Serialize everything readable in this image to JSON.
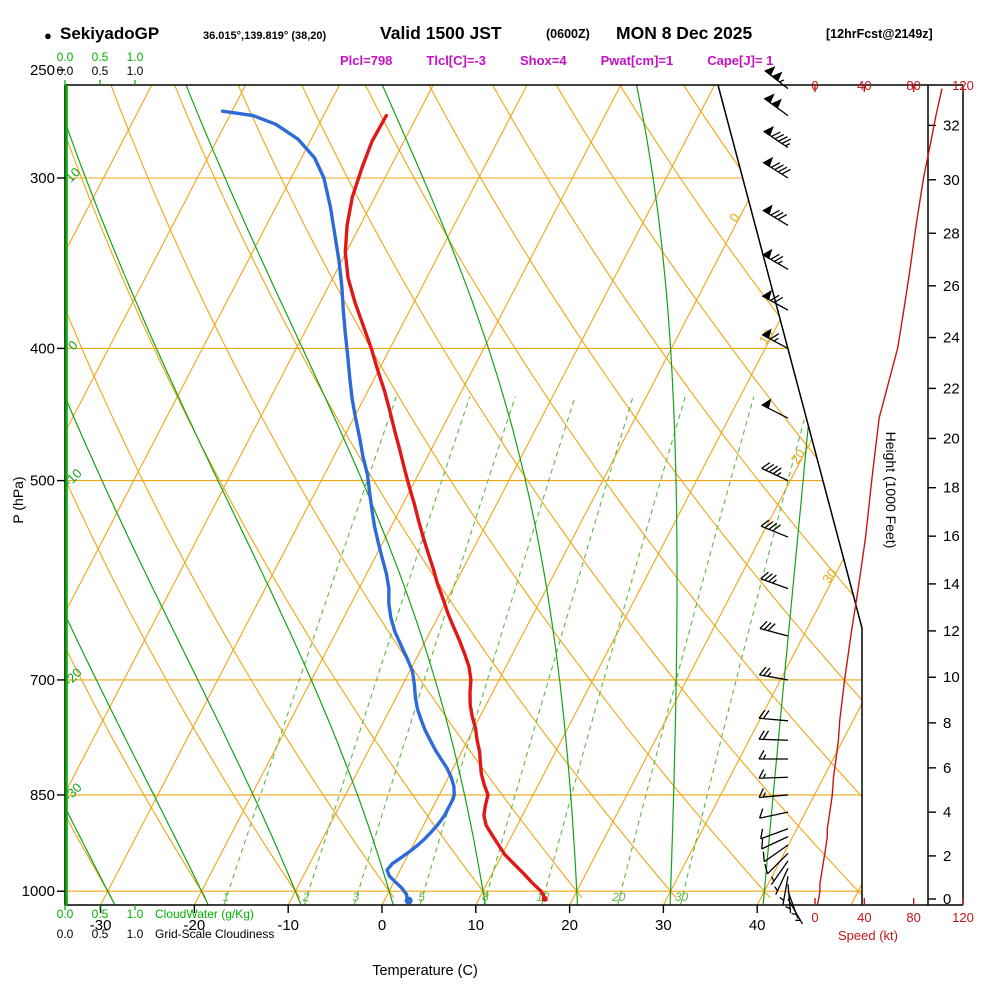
{
  "header": {
    "bullet": "●",
    "station": "SekiyadoGP",
    "coords": "36.015°,139.819° (38,20)",
    "valid": "Valid 1500 JST",
    "valid_utc": "(0600Z)",
    "date": "MON 8 Dec 2025",
    "forecast": "[12hrFcst@2149z]"
  },
  "params": [
    "Plcl=798",
    "Tlcl[C]=-3",
    "Shox=4",
    "Pwat[cm]=1",
    "Cape[J]= 1"
  ],
  "axis_labels": {
    "pressure": "P (hPa)",
    "temperature": "Temperature (C)",
    "height": "Height (1000 Feet)",
    "speed": "Speed (kt)",
    "cloudwater": "CloudWater (g/Kg)",
    "cloudiness": "Grid-Scale Cloudiness"
  },
  "chart_data": {
    "type": "skewt-logp",
    "pressure_ticks_hpa": [
      250,
      300,
      400,
      500,
      700,
      850,
      1000
    ],
    "temperature_ticks_c": [
      -30,
      -20,
      -10,
      0,
      10,
      20,
      30,
      40
    ],
    "height_ticks_kft": [
      0,
      2,
      4,
      6,
      8,
      10,
      12,
      14,
      16,
      18,
      20,
      22,
      24,
      26,
      28,
      30,
      32
    ],
    "speed_ticks_kt": [
      0,
      40,
      80,
      120
    ],
    "cloud_scale_ticks": [
      "0.0",
      "0.5",
      "1.0"
    ],
    "isotherm_labels_c": [
      0,
      10,
      20,
      30
    ],
    "moist_adiabats_c": [
      -30,
      -20,
      -10,
      0,
      10,
      20,
      30,
      40
    ],
    "moist_adiabat_labels_c": [
      10,
      0,
      -10,
      -20,
      -30
    ],
    "mixing_ratio_g_kg": [
      1,
      2,
      3,
      5,
      8,
      12,
      20,
      30
    ],
    "temperature_profile_p_t": [
      [
        1012,
        17.0
      ],
      [
        1000,
        16.2
      ],
      [
        985,
        14.7
      ],
      [
        970,
        13.3
      ],
      [
        955,
        11.8
      ],
      [
        940,
        10.3
      ],
      [
        925,
        9.1
      ],
      [
        910,
        7.9
      ],
      [
        895,
        6.7
      ],
      [
        880,
        5.9
      ],
      [
        865,
        5.5
      ],
      [
        850,
        5.2
      ],
      [
        835,
        4.2
      ],
      [
        820,
        3.3
      ],
      [
        805,
        2.6
      ],
      [
        790,
        1.9
      ],
      [
        775,
        1.0
      ],
      [
        760,
        0.2
      ],
      [
        745,
        -0.8
      ],
      [
        730,
        -1.7
      ],
      [
        715,
        -2.4
      ],
      [
        700,
        -3.0
      ],
      [
        685,
        -3.9
      ],
      [
        670,
        -5.1
      ],
      [
        655,
        -6.4
      ],
      [
        640,
        -7.8
      ],
      [
        625,
        -9.2
      ],
      [
        610,
        -10.5
      ],
      [
        595,
        -11.9
      ],
      [
        580,
        -13.2
      ],
      [
        565,
        -14.6
      ],
      [
        550,
        -16.0
      ],
      [
        535,
        -17.4
      ],
      [
        520,
        -18.8
      ],
      [
        505,
        -20.3
      ],
      [
        490,
        -21.8
      ],
      [
        475,
        -23.3
      ],
      [
        460,
        -24.9
      ],
      [
        445,
        -26.5
      ],
      [
        430,
        -28.2
      ],
      [
        415,
        -30.1
      ],
      [
        400,
        -32.0
      ],
      [
        385,
        -34.1
      ],
      [
        370,
        -36.3
      ],
      [
        355,
        -38.4
      ],
      [
        340,
        -40.1
      ],
      [
        325,
        -41.4
      ],
      [
        310,
        -42.4
      ],
      [
        295,
        -43.0
      ],
      [
        282,
        -43.4
      ],
      [
        270,
        -43.3
      ]
    ],
    "dewpoint_profile_p_t": [
      [
        1014,
        2.4
      ],
      [
        1005,
        2.0
      ],
      [
        995,
        1.2
      ],
      [
        985,
        0.2
      ],
      [
        975,
        -0.8
      ],
      [
        965,
        -1.4
      ],
      [
        955,
        -1.2
      ],
      [
        945,
        -0.6
      ],
      [
        935,
        0.0
      ],
      [
        925,
        0.5
      ],
      [
        915,
        0.9
      ],
      [
        905,
        1.2
      ],
      [
        893,
        1.5
      ],
      [
        880,
        1.7
      ],
      [
        868,
        1.7
      ],
      [
        856,
        1.7
      ],
      [
        850,
        1.6
      ],
      [
        838,
        1.1
      ],
      [
        825,
        0.3
      ],
      [
        812,
        -0.7
      ],
      [
        800,
        -1.8
      ],
      [
        788,
        -2.9
      ],
      [
        775,
        -4.0
      ],
      [
        762,
        -5.1
      ],
      [
        750,
        -6.0
      ],
      [
        735,
        -7.1
      ],
      [
        720,
        -8.0
      ],
      [
        705,
        -8.8
      ],
      [
        690,
        -9.7
      ],
      [
        675,
        -11.0
      ],
      [
        660,
        -12.4
      ],
      [
        645,
        -13.8
      ],
      [
        630,
        -15.0
      ],
      [
        615,
        -16.0
      ],
      [
        600,
        -16.8
      ],
      [
        585,
        -17.9
      ],
      [
        570,
        -19.2
      ],
      [
        555,
        -20.5
      ],
      [
        540,
        -21.8
      ],
      [
        525,
        -23.0
      ],
      [
        510,
        -24.2
      ],
      [
        495,
        -25.4
      ],
      [
        480,
        -26.9
      ],
      [
        465,
        -28.3
      ],
      [
        450,
        -29.8
      ],
      [
        435,
        -31.3
      ],
      [
        420,
        -32.7
      ],
      [
        405,
        -34.1
      ],
      [
        390,
        -35.6
      ],
      [
        375,
        -37.1
      ],
      [
        360,
        -38.6
      ],
      [
        345,
        -40.3
      ],
      [
        330,
        -42.2
      ],
      [
        315,
        -44.2
      ],
      [
        300,
        -46.5
      ],
      [
        290,
        -48.6
      ],
      [
        281,
        -51.4
      ],
      [
        274,
        -54.6
      ],
      [
        270,
        -57.5
      ],
      [
        268,
        -61.0
      ]
    ],
    "surface_dewpoint_marker": {
      "p": 1016,
      "t": 2.6
    },
    "surface_temperature_marker": {
      "p": 1013,
      "t": 17.0
    },
    "wind_profile_p_dir_kt": [
      [
        1013,
        150,
        3
      ],
      [
        1000,
        160,
        4
      ],
      [
        988,
        175,
        4
      ],
      [
        975,
        190,
        5
      ],
      [
        962,
        205,
        6
      ],
      [
        950,
        215,
        7
      ],
      [
        938,
        225,
        8
      ],
      [
        925,
        235,
        9
      ],
      [
        912,
        245,
        10
      ],
      [
        900,
        250,
        10
      ],
      [
        875,
        258,
        12
      ],
      [
        850,
        265,
        14
      ],
      [
        825,
        268,
        15
      ],
      [
        800,
        270,
        17
      ],
      [
        775,
        272,
        19
      ],
      [
        750,
        275,
        20
      ],
      [
        700,
        280,
        24
      ],
      [
        650,
        285,
        29
      ],
      [
        600,
        290,
        35
      ],
      [
        550,
        292,
        41
      ],
      [
        500,
        295,
        46
      ],
      [
        450,
        297,
        52
      ],
      [
        400,
        298,
        67
      ],
      [
        375,
        299,
        72
      ],
      [
        350,
        300,
        77
      ],
      [
        325,
        301,
        82
      ],
      [
        300,
        302,
        88
      ],
      [
        285,
        304,
        93
      ],
      [
        270,
        306,
        98
      ],
      [
        258,
        308,
        103
      ]
    ],
    "colors": {
      "isoline_orange": "#eda615",
      "adiabat_green": "#18a018",
      "mixing_green": "#5cb944",
      "temperature_red": "#e01818",
      "dewpoint_blue": "#2e6bd8",
      "speed_red": "#c41616",
      "params_magenta": "#c410c4",
      "cloud_green": "#00b400",
      "axis_black": "#000000"
    }
  }
}
